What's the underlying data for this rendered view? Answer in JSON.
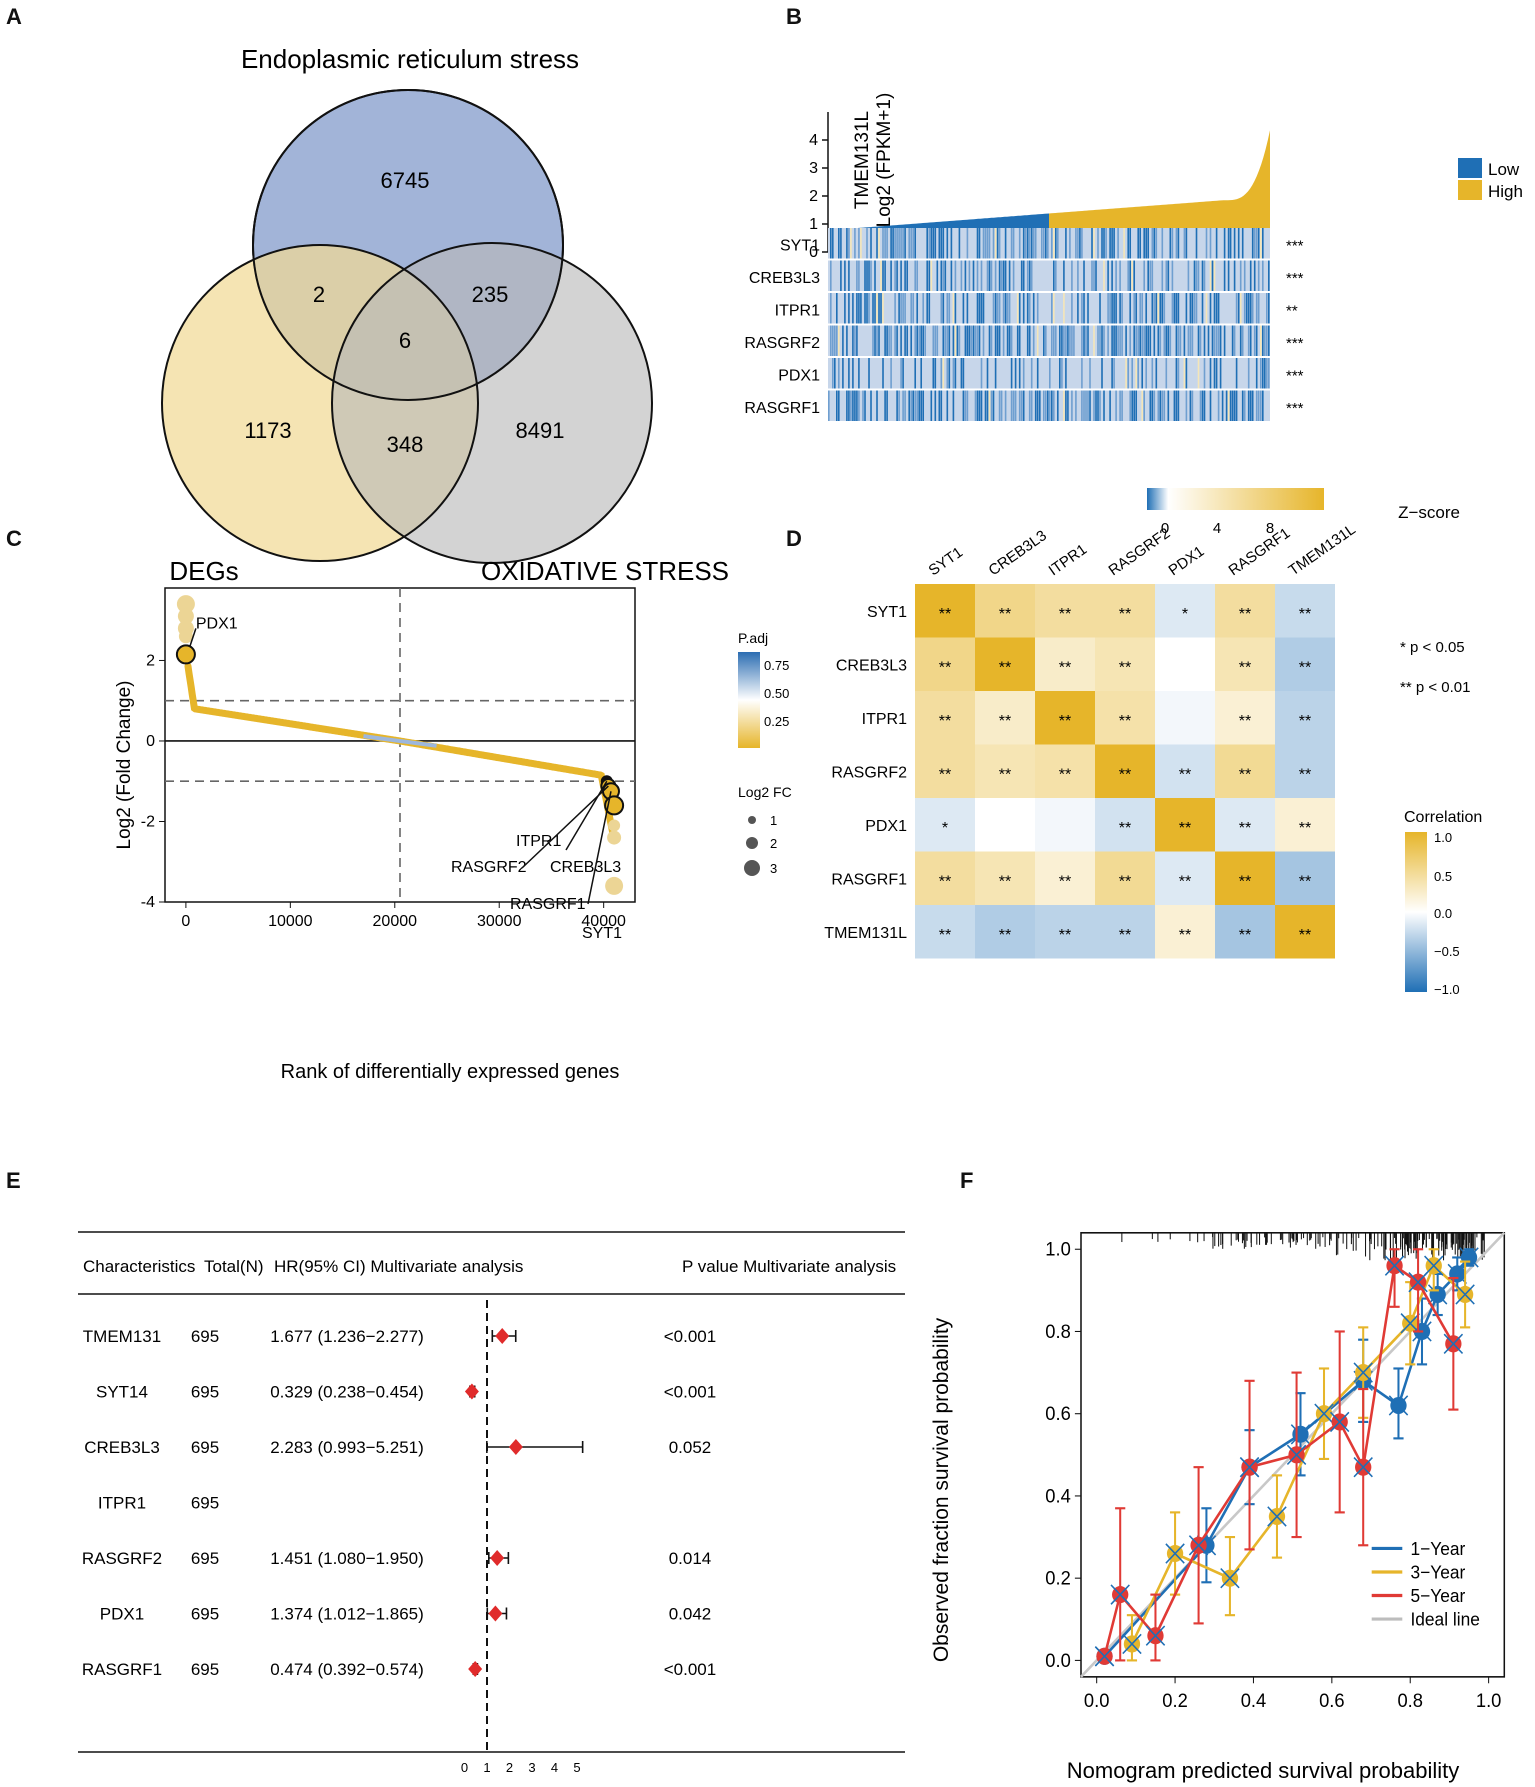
{
  "panels": {
    "A": "A",
    "B": "B",
    "C": "C",
    "D": "D",
    "E": "E",
    "F": "F"
  },
  "venn": {
    "title": "Endoplasmic reticulum stress",
    "label_left": "DEGs",
    "label_right": "OXIDATIVE STRESS",
    "regions": {
      "er_only": "6745",
      "deg_only": "1173",
      "ox_only": "8491",
      "deg_er": "2",
      "er_ox": "235",
      "deg_ox": "348",
      "all": "6"
    },
    "colors": {
      "er": "#9db0d6",
      "deg": "#f1d996",
      "ox": "#c9c9c9"
    }
  },
  "panelB": {
    "ylabel_line1": "TMEM131L",
    "ylabel_line2": "Log2 (FPKM+1)",
    "yticks": [
      "0",
      "1",
      "2",
      "3",
      "4"
    ],
    "legend": [
      {
        "label": "Low",
        "color": "#1f6fb5"
      },
      {
        "label": "High",
        "color": "#e6b52a"
      }
    ],
    "genes": [
      {
        "name": "SYT1",
        "sig": "***"
      },
      {
        "name": "CREB3L3",
        "sig": "***"
      },
      {
        "name": "ITPR1",
        "sig": "**"
      },
      {
        "name": "RASGRF2",
        "sig": "***"
      },
      {
        "name": "PDX1",
        "sig": "***"
      },
      {
        "name": "RASGRF1",
        "sig": "***"
      }
    ],
    "zscore_label": "Z−score",
    "zscore_ticks": [
      "0",
      "4",
      "8"
    ]
  },
  "chart_data": [
    {
      "type": "scatter",
      "title": "",
      "xlabel": "Rank of differentially expressed genes",
      "ylabel": "Log2 (Fold Change)",
      "xlim": [
        -2000,
        43000
      ],
      "ylim": [
        -4,
        3.8
      ],
      "xticks": [
        "0",
        "10000",
        "20000",
        "30000",
        "40000"
      ],
      "yticks": [
        "-4",
        "-2",
        "0",
        "2"
      ],
      "hlines": [
        1,
        -1
      ],
      "vline": 20500,
      "labeled_genes": [
        {
          "name": "PDX1",
          "x": 0,
          "y": 2.15
        },
        {
          "name": "ITPR1",
          "x": 40300,
          "y": -1.0
        },
        {
          "name": "CREB3L3",
          "x": 40400,
          "y": -1.05
        },
        {
          "name": "RASGRF2",
          "x": 40500,
          "y": -1.1
        },
        {
          "name": "RASGRF1",
          "x": 40700,
          "y": -1.2
        },
        {
          "name": "SYT1",
          "x": 41000,
          "y": -1.6
        }
      ],
      "legend_padj": {
        "title": "P.adj",
        "ticks": [
          "0.75",
          "0.50",
          "0.25"
        ]
      },
      "legend_size": {
        "title": "Log2 FC",
        "items": [
          "1",
          "2",
          "3"
        ]
      }
    },
    {
      "type": "heatmap",
      "genes": [
        "SYT1",
        "CREB3L3",
        "ITPR1",
        "RASGRF2",
        "PDX1",
        "RASGRF1",
        "TMEM131L"
      ],
      "correlation": [
        [
          1.0,
          0.55,
          0.45,
          0.45,
          -0.15,
          0.45,
          -0.25
        ],
        [
          0.55,
          1.0,
          0.25,
          0.35,
          0.0,
          0.35,
          -0.35
        ],
        [
          0.45,
          0.25,
          1.0,
          0.4,
          -0.05,
          0.2,
          -0.3
        ],
        [
          0.45,
          0.35,
          0.4,
          1.0,
          -0.2,
          0.5,
          -0.3
        ],
        [
          -0.15,
          0.0,
          -0.05,
          -0.2,
          1.0,
          -0.15,
          0.2
        ],
        [
          0.45,
          0.35,
          0.2,
          0.5,
          -0.15,
          1.0,
          -0.4
        ],
        [
          -0.25,
          -0.35,
          -0.3,
          -0.3,
          0.2,
          -0.4,
          1.0
        ]
      ],
      "significance": [
        [
          "**",
          "**",
          "**",
          "**",
          "*",
          "**",
          "**"
        ],
        [
          "**",
          "**",
          "**",
          "**",
          "",
          "**",
          "**"
        ],
        [
          "**",
          "**",
          "**",
          "**",
          "",
          "**",
          "**"
        ],
        [
          "**",
          "**",
          "**",
          "**",
          "**",
          "**",
          "**"
        ],
        [
          "*",
          "",
          "",
          "**",
          "**",
          "**",
          "**"
        ],
        [
          "**",
          "**",
          "**",
          "**",
          "**",
          "**",
          "**"
        ],
        [
          "**",
          "**",
          "**",
          "**",
          "**",
          "**",
          "**"
        ]
      ],
      "legend_sig": [
        "* p < 0.05",
        "** p < 0.01"
      ],
      "legend_title": "Correlation",
      "legend_ticks": [
        "1.0",
        "0.5",
        "0.0",
        "−0.5",
        "−1.0"
      ]
    },
    {
      "type": "forest",
      "headers": {
        "characteristics": "Characteristics",
        "total": "Total(N)",
        "hr": "HR(95% CI) Multivariate analysis",
        "p": "P value Multivariate analysis"
      },
      "rows": [
        {
          "name": "TMEM131",
          "n": "695",
          "hr_text": "1.677 (1.236−2.277)",
          "p": "<0.001",
          "hr": 1.677,
          "lo": 1.236,
          "hi": 2.277
        },
        {
          "name": "SYT14",
          "n": "695",
          "hr_text": "0.329 (0.238−0.454)",
          "p": "<0.001",
          "hr": 0.329,
          "lo": 0.238,
          "hi": 0.454
        },
        {
          "name": "CREB3L3",
          "n": "695",
          "hr_text": "2.283 (0.993−5.251)",
          "p": "0.052",
          "hr": 2.283,
          "lo": 0.993,
          "hi": 5.251
        },
        {
          "name": "ITPR1",
          "n": "695",
          "hr_text": "",
          "p": "",
          "hr": null,
          "lo": null,
          "hi": null
        },
        {
          "name": "RASGRF2",
          "n": "695",
          "hr_text": "1.451 (1.080−1.950)",
          "p": "0.014",
          "hr": 1.451,
          "lo": 1.08,
          "hi": 1.95
        },
        {
          "name": "PDX1",
          "n": "695",
          "hr_text": "1.374 (1.012−1.865)",
          "p": "0.042",
          "hr": 1.374,
          "lo": 1.012,
          "hi": 1.865
        },
        {
          "name": "RASGRF1",
          "n": "695",
          "hr_text": "0.474 (0.392−0.574)",
          "p": "<0.001",
          "hr": 0.474,
          "lo": 0.392,
          "hi": 0.574
        }
      ],
      "xticks": [
        "0",
        "1",
        "2",
        "3",
        "4",
        "5"
      ],
      "ref_line": 1
    },
    {
      "type": "line",
      "xlabel": "Nomogram predicted survival probability",
      "ylabel": "Observed fraction survival probability",
      "xlim": [
        -0.04,
        1.04
      ],
      "ylim": [
        -0.04,
        1.04
      ],
      "xticks": [
        "0.0",
        "0.2",
        "0.4",
        "0.6",
        "0.8",
        "1.0"
      ],
      "yticks": [
        "0.0",
        "0.2",
        "0.4",
        "0.6",
        "0.8",
        "1.0"
      ],
      "series": [
        {
          "name": "1−Year",
          "color": "#1f6fb5",
          "points": [
            [
              0.02,
              0.01,
              0.01,
              0.01
            ],
            [
              0.28,
              0.28,
              0.19,
              0.37
            ],
            [
              0.39,
              0.47,
              0.38,
              0.56
            ],
            [
              0.52,
              0.55,
              0.45,
              0.65
            ],
            [
              0.68,
              0.68,
              0.58,
              0.78
            ],
            [
              0.77,
              0.62,
              0.54,
              0.71
            ],
            [
              0.83,
              0.8,
              0.72,
              0.88
            ],
            [
              0.87,
              0.89,
              0.84,
              0.94
            ],
            [
              0.92,
              0.94,
              0.9,
              0.98
            ],
            [
              0.95,
              0.98,
              0.96,
              1.0
            ]
          ]
        },
        {
          "name": "3−Year",
          "color": "#e6b52a",
          "points": [
            [
              0.09,
              0.04,
              0.0,
              0.11
            ],
            [
              0.2,
              0.26,
              0.16,
              0.36
            ],
            [
              0.34,
              0.2,
              0.11,
              0.3
            ],
            [
              0.46,
              0.35,
              0.25,
              0.45
            ],
            [
              0.58,
              0.6,
              0.49,
              0.71
            ],
            [
              0.68,
              0.7,
              0.59,
              0.81
            ],
            [
              0.8,
              0.82,
              0.72,
              0.92
            ],
            [
              0.86,
              0.96,
              0.9,
              1.0
            ],
            [
              0.94,
              0.89,
              0.81,
              0.97
            ]
          ]
        },
        {
          "name": "5−Year",
          "color": "#e03a35",
          "points": [
            [
              0.02,
              0.01,
              0.0,
              0.02
            ],
            [
              0.06,
              0.16,
              0.0,
              0.37
            ],
            [
              0.15,
              0.06,
              0.0,
              0.16
            ],
            [
              0.26,
              0.28,
              0.09,
              0.47
            ],
            [
              0.39,
              0.47,
              0.27,
              0.68
            ],
            [
              0.51,
              0.5,
              0.3,
              0.7
            ],
            [
              0.62,
              0.58,
              0.36,
              0.8
            ],
            [
              0.68,
              0.47,
              0.28,
              0.66
            ],
            [
              0.76,
              0.96,
              0.86,
              1.0
            ],
            [
              0.82,
              0.92,
              0.8,
              1.0
            ],
            [
              0.91,
              0.77,
              0.61,
              0.93
            ]
          ]
        },
        {
          "name": "Ideal line",
          "color": "#bdbdbd",
          "points": []
        }
      ]
    }
  ]
}
